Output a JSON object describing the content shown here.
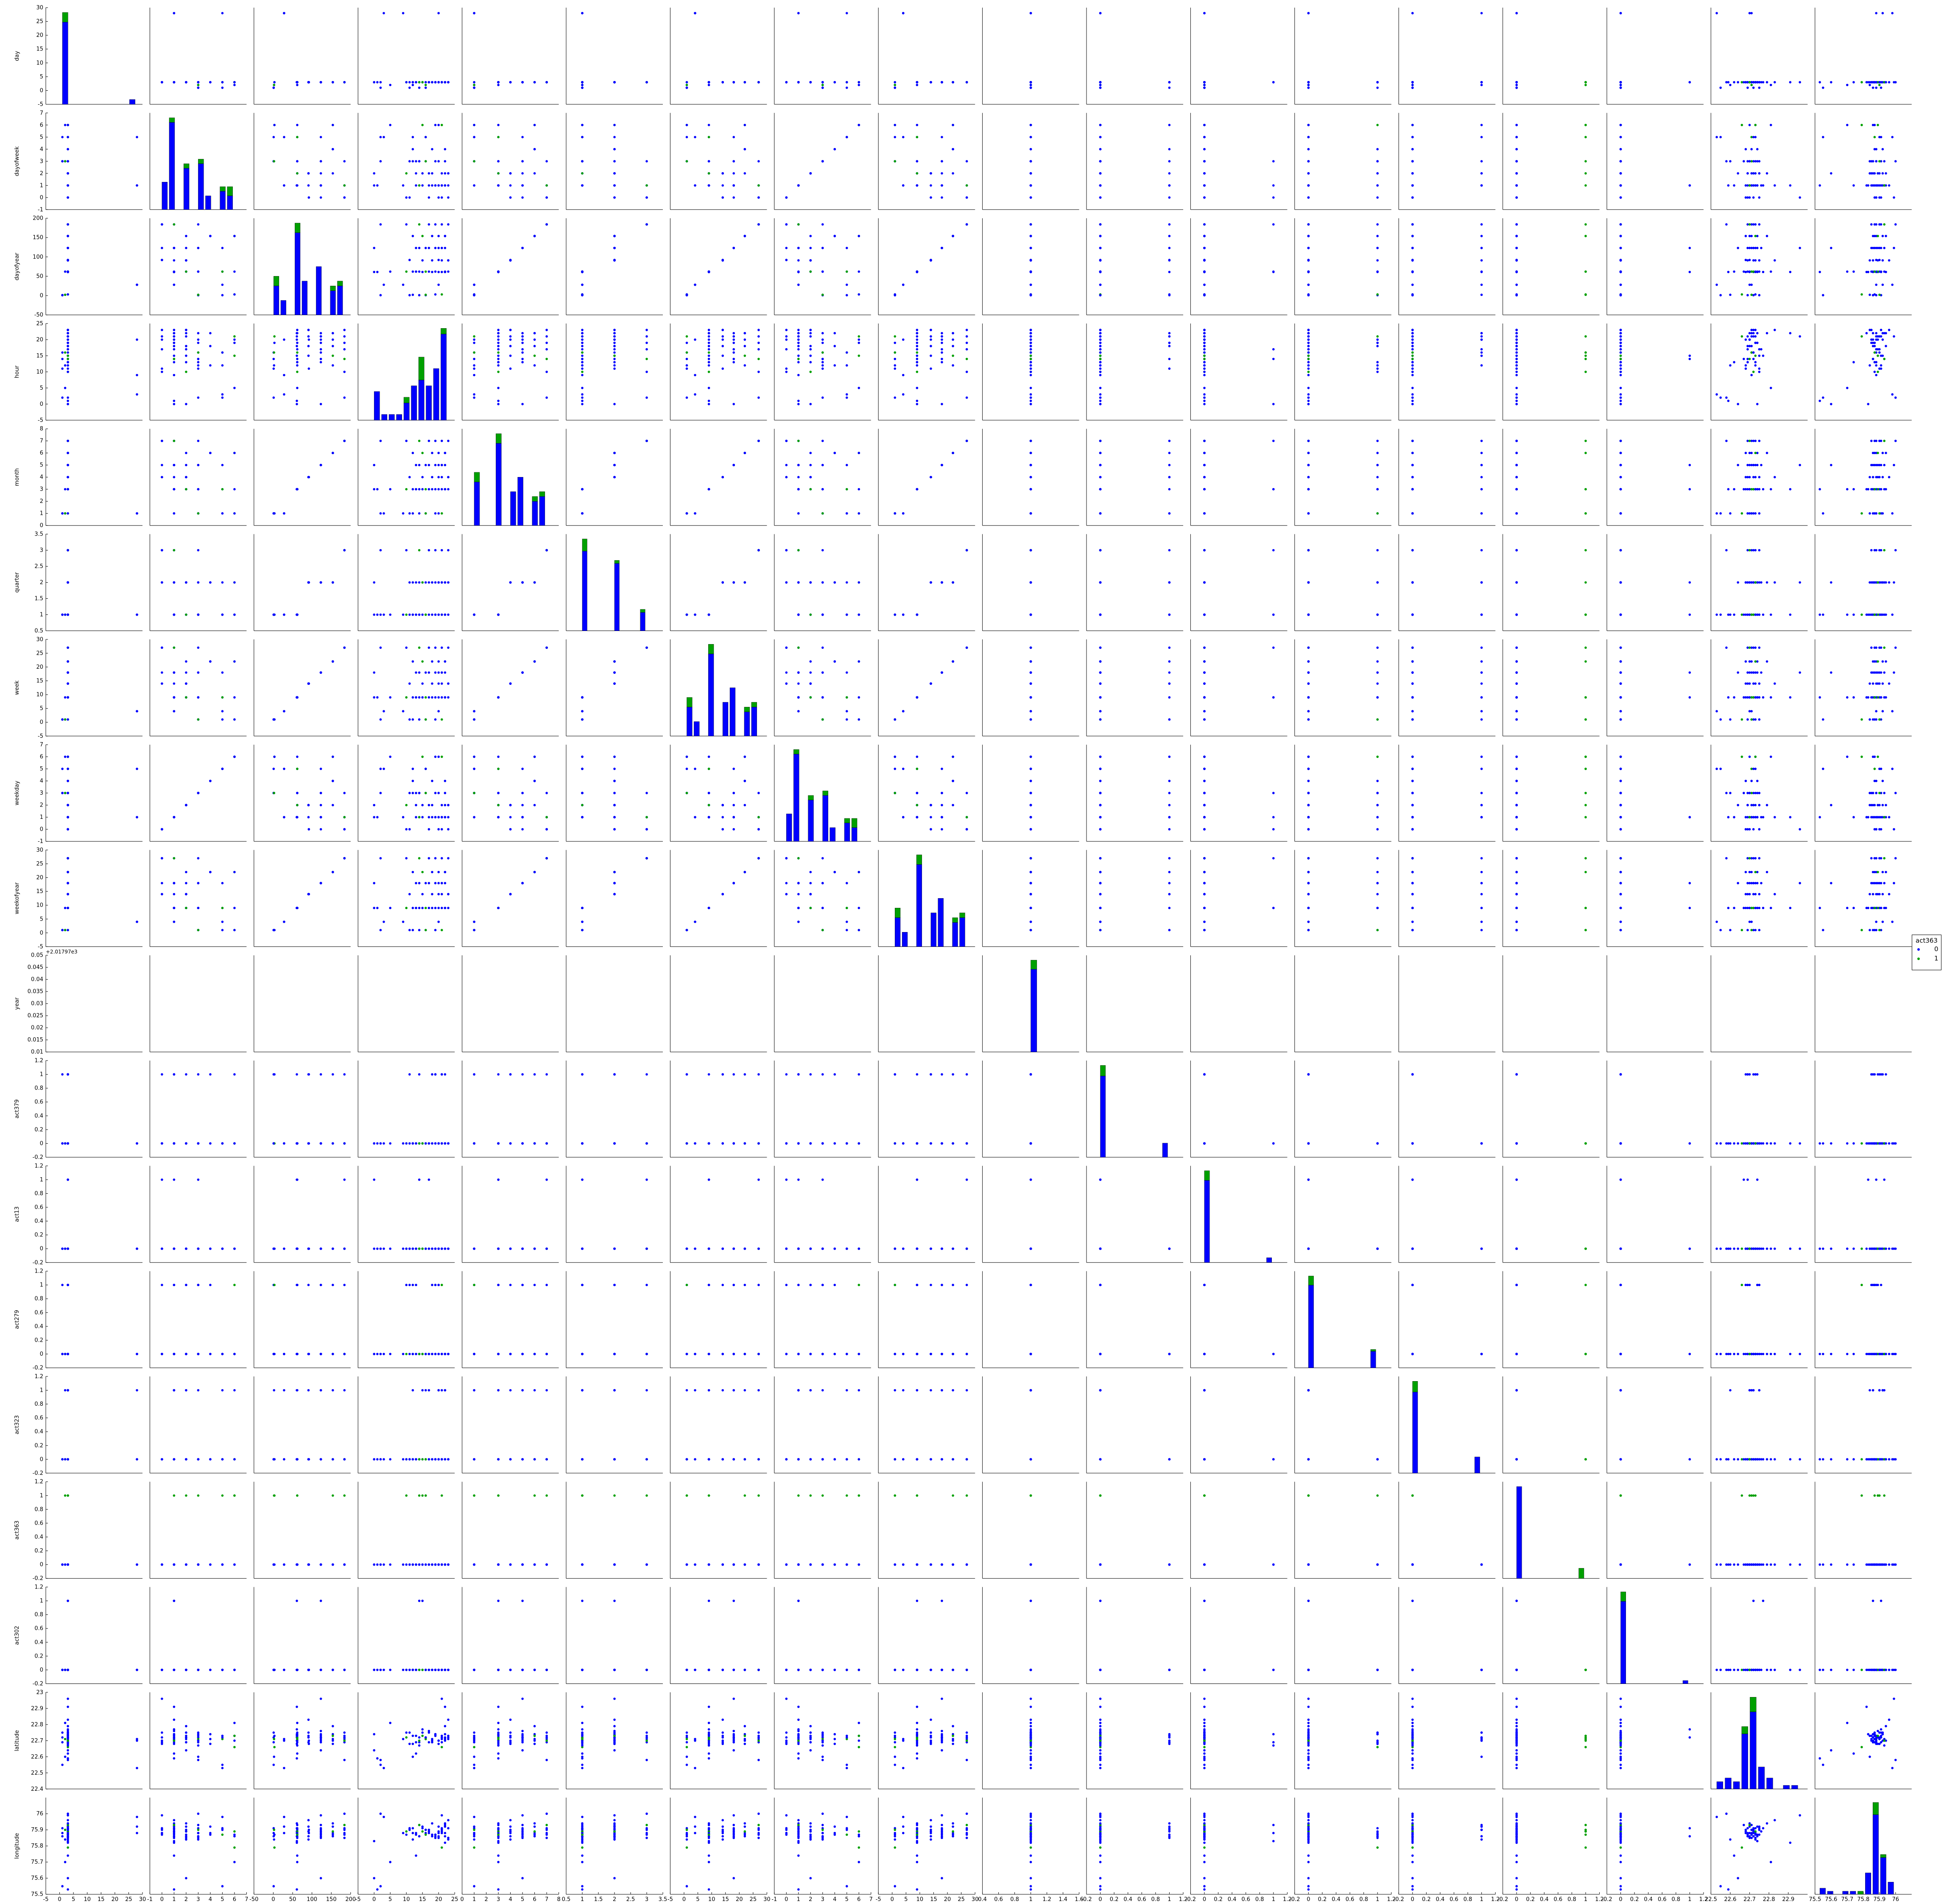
{
  "chart_data": {
    "type": "scatter",
    "title": "",
    "variables": [
      {
        "name": "day",
        "ticks": [
          -5,
          0,
          5,
          10,
          15,
          20,
          25,
          30
        ],
        "lim": [
          -5,
          30
        ]
      },
      {
        "name": "dayofweek",
        "ticks": [
          -1,
          0,
          1,
          2,
          3,
          4,
          5,
          6,
          7
        ],
        "lim": [
          -1,
          7
        ]
      },
      {
        "name": "dayofyear",
        "ticks": [
          -50,
          0,
          50,
          100,
          150,
          200
        ],
        "lim": [
          -50,
          200
        ]
      },
      {
        "name": "hour",
        "ticks": [
          -5,
          0,
          5,
          10,
          15,
          20,
          25
        ],
        "lim": [
          -5,
          25
        ]
      },
      {
        "name": "month",
        "ticks": [
          0,
          1,
          2,
          3,
          4,
          5,
          6,
          7,
          8
        ],
        "lim": [
          0,
          8
        ]
      },
      {
        "name": "quarter",
        "ticks": [
          0.5,
          1.0,
          1.5,
          2.0,
          2.5,
          3.0,
          3.5
        ],
        "lim": [
          0.5,
          3.5
        ]
      },
      {
        "name": "week",
        "ticks": [
          -5,
          0,
          5,
          10,
          15,
          20,
          25,
          30
        ],
        "lim": [
          -5,
          30
        ]
      },
      {
        "name": "weekday",
        "ticks": [
          -1,
          0,
          1,
          2,
          3,
          4,
          5,
          6,
          7
        ],
        "lim": [
          -1,
          7
        ]
      },
      {
        "name": "weekofyear",
        "ticks": [
          -5,
          0,
          5,
          10,
          15,
          20,
          25,
          30
        ],
        "lim": [
          -5,
          30
        ]
      },
      {
        "name": "year",
        "ticks": [
          0.01,
          0.015,
          0.02,
          0.025,
          0.03,
          0.035,
          0.04,
          0.045,
          0.05
        ],
        "lim": [
          0.01,
          0.05
        ],
        "xticks": [
          0.4,
          0.6,
          0.8,
          1.0,
          1.2,
          1.4,
          1.6
        ],
        "xlim": [
          0.4,
          1.6
        ],
        "offset": "+2.01797e3",
        "xoffset": "+2.017e3"
      },
      {
        "name": "act379",
        "ticks": [
          -0.2,
          0.0,
          0.2,
          0.4,
          0.6,
          0.8,
          1.0,
          1.2
        ],
        "lim": [
          -0.2,
          1.2
        ]
      },
      {
        "name": "act13",
        "ticks": [
          -0.2,
          0.0,
          0.2,
          0.4,
          0.6,
          0.8,
          1.0,
          1.2
        ],
        "lim": [
          -0.2,
          1.2
        ]
      },
      {
        "name": "act279",
        "ticks": [
          -0.2,
          0.0,
          0.2,
          0.4,
          0.6,
          0.8,
          1.0,
          1.2
        ],
        "lim": [
          -0.2,
          1.2
        ]
      },
      {
        "name": "act323",
        "ticks": [
          -0.2,
          0.0,
          0.2,
          0.4,
          0.6,
          0.8,
          1.0,
          1.2
        ],
        "lim": [
          -0.2,
          1.2
        ]
      },
      {
        "name": "act363",
        "ticks": [
          -0.2,
          0.0,
          0.2,
          0.4,
          0.6,
          0.8,
          1.0,
          1.2
        ],
        "lim": [
          -0.2,
          1.2
        ]
      },
      {
        "name": "act302",
        "ticks": [
          -0.2,
          0.0,
          0.2,
          0.4,
          0.6,
          0.8,
          1.0,
          1.2
        ],
        "lim": [
          -0.2,
          1.2
        ]
      },
      {
        "name": "latitude",
        "ticks": [
          22.4,
          22.5,
          22.6,
          22.7,
          22.8,
          22.9,
          23.0
        ],
        "lim": [
          22.4,
          23.0
        ],
        "xticks": [
          22.5,
          22.6,
          22.7,
          22.8,
          22.9
        ],
        "xlim": [
          22.5,
          23.0
        ]
      },
      {
        "name": "longitude",
        "ticks": [
          75.5,
          75.6,
          75.7,
          75.8,
          75.9,
          76.0
        ],
        "lim": [
          75.5,
          76.1
        ],
        "xticks": [
          75.5,
          75.6,
          75.7,
          75.8,
          75.9,
          76.0
        ],
        "xlim": [
          75.5,
          76.1
        ]
      }
    ],
    "records": [
      [
        1,
        3,
        1,
        16,
        1,
        1,
        1,
        3,
        1,
        1,
        0,
        0,
        0,
        0,
        0,
        0,
        22.72,
        75.88
      ],
      [
        1,
        3,
        1,
        14,
        1,
        1,
        1,
        3,
        1,
        1,
        1,
        0,
        0,
        0,
        0,
        0,
        22.69,
        75.86
      ],
      [
        1,
        3,
        1,
        11,
        1,
        1,
        1,
        3,
        1,
        1,
        0,
        0,
        1,
        0,
        0,
        0,
        22.75,
        75.91
      ],
      [
        2,
        3,
        2,
        12,
        1,
        1,
        1,
        3,
        1,
        1,
        0,
        0,
        0,
        1,
        0,
        0,
        22.6,
        75.84
      ],
      [
        2,
        3,
        2,
        16,
        1,
        1,
        1,
        3,
        1,
        1,
        0,
        0,
        0,
        0,
        1,
        0,
        22.71,
        75.9
      ],
      [
        3,
        6,
        3,
        21,
        1,
        1,
        1,
        6,
        1,
        1,
        0,
        0,
        1,
        0,
        1,
        0,
        22.66,
        75.79
      ],
      [
        3,
        6,
        3,
        19,
        1,
        1,
        1,
        6,
        1,
        1,
        1,
        0,
        0,
        0,
        0,
        0,
        22.73,
        75.87
      ],
      [
        28,
        1,
        28,
        20,
        1,
        1,
        4,
        1,
        4,
        1,
        0,
        0,
        0,
        1,
        0,
        0,
        22.7,
        75.92
      ],
      [
        28,
        1,
        28,
        9,
        1,
        1,
        4,
        1,
        4,
        1,
        0,
        0,
        0,
        0,
        0,
        0,
        22.71,
        75.88
      ],
      [
        3,
        1,
        61,
        0,
        3,
        1,
        9,
        1,
        9,
        1,
        0,
        1,
        0,
        0,
        0,
        0,
        22.74,
        75.83
      ],
      [
        3,
        1,
        61,
        20,
        3,
        1,
        9,
        1,
        9,
        1,
        0,
        0,
        1,
        0,
        0,
        0,
        22.68,
        75.89
      ],
      [
        3,
        1,
        61,
        22,
        3,
        1,
        9,
        1,
        9,
        1,
        0,
        0,
        0,
        1,
        0,
        0,
        22.72,
        75.86
      ],
      [
        3,
        1,
        61,
        15,
        3,
        1,
        9,
        1,
        9,
        1,
        0,
        0,
        0,
        0,
        0,
        1,
        22.77,
        75.91
      ],
      [
        3,
        1,
        61,
        18,
        3,
        1,
        9,
        1,
        9,
        1,
        1,
        0,
        0,
        0,
        0,
        0,
        22.7,
        75.94
      ],
      [
        3,
        1,
        61,
        21,
        3,
        1,
        9,
        1,
        9,
        1,
        0,
        0,
        0,
        0,
        0,
        0,
        22.73,
        75.88
      ],
      [
        3,
        2,
        62,
        13,
        3,
        1,
        9,
        2,
        9,
        1,
        0,
        0,
        1,
        0,
        0,
        0,
        22.69,
        75.87
      ],
      [
        3,
        2,
        62,
        17,
        3,
        1,
        9,
        2,
        9,
        1,
        0,
        0,
        0,
        1,
        0,
        0,
        22.75,
        75.9
      ],
      [
        3,
        2,
        62,
        23,
        3,
        1,
        9,
        2,
        9,
        1,
        0,
        0,
        0,
        0,
        0,
        0,
        22.71,
        75.85
      ],
      [
        3,
        2,
        62,
        10,
        3,
        1,
        9,
        2,
        9,
        1,
        0,
        0,
        0,
        0,
        1,
        0,
        22.72,
        75.89
      ],
      [
        3,
        3,
        62,
        14,
        3,
        1,
        9,
        3,
        9,
        1,
        0,
        1,
        0,
        0,
        0,
        0,
        22.67,
        75.93
      ],
      [
        3,
        3,
        62,
        19,
        3,
        1,
        9,
        3,
        9,
        1,
        0,
        0,
        1,
        0,
        0,
        0,
        22.74,
        75.86
      ],
      [
        3,
        3,
        62,
        22,
        3,
        1,
        9,
        3,
        9,
        1,
        0,
        0,
        0,
        0,
        0,
        0,
        22.7,
        75.88
      ],
      [
        3,
        5,
        62,
        12,
        3,
        1,
        9,
        5,
        9,
        1,
        0,
        0,
        0,
        0,
        0,
        0,
        22.73,
        75.91
      ],
      [
        3,
        5,
        62,
        16,
        3,
        1,
        9,
        5,
        9,
        1,
        0,
        0,
        0,
        0,
        1,
        0,
        22.71,
        75.87
      ],
      [
        3,
        2,
        91,
        21,
        4,
        2,
        14,
        2,
        14,
        1,
        1,
        0,
        0,
        0,
        0,
        0,
        22.72,
        75.89
      ],
      [
        3,
        2,
        91,
        18,
        4,
        2,
        14,
        2,
        14,
        1,
        0,
        0,
        1,
        0,
        0,
        0,
        22.69,
        75.86
      ],
      [
        3,
        2,
        91,
        15,
        4,
        2,
        14,
        2,
        14,
        1,
        0,
        0,
        0,
        1,
        0,
        0,
        22.75,
        75.92
      ],
      [
        3,
        2,
        91,
        23,
        4,
        2,
        14,
        2,
        14,
        1,
        0,
        0,
        0,
        0,
        0,
        0,
        22.73,
        75.84
      ],
      [
        3,
        0,
        92,
        20,
        4,
        2,
        14,
        0,
        14,
        1,
        0,
        0,
        0,
        0,
        0,
        0,
        22.7,
        75.88
      ],
      [
        3,
        0,
        92,
        11,
        4,
        2,
        14,
        0,
        14,
        1,
        1,
        0,
        0,
        0,
        0,
        0,
        22.68,
        75.9
      ],
      [
        3,
        1,
        123,
        19,
        5,
        2,
        18,
        1,
        18,
        1,
        0,
        0,
        1,
        0,
        0,
        0,
        22.74,
        75.87
      ],
      [
        3,
        1,
        123,
        22,
        5,
        2,
        18,
        1,
        18,
        1,
        0,
        0,
        0,
        1,
        0,
        0,
        22.71,
        75.93
      ],
      [
        3,
        1,
        123,
        14,
        5,
        2,
        18,
        1,
        18,
        1,
        0,
        0,
        0,
        0,
        0,
        1,
        22.72,
        75.86
      ],
      [
        3,
        1,
        123,
        17,
        5,
        2,
        18,
        1,
        18,
        1,
        0,
        0,
        0,
        0,
        0,
        0,
        22.76,
        75.89
      ],
      [
        3,
        1,
        123,
        21,
        5,
        2,
        18,
        1,
        18,
        1,
        1,
        0,
        0,
        0,
        0,
        0,
        22.69,
        75.91
      ],
      [
        3,
        3,
        123,
        13,
        5,
        2,
        18,
        3,
        18,
        1,
        0,
        0,
        0,
        0,
        0,
        0,
        22.73,
        75.88
      ],
      [
        3,
        3,
        123,
        20,
        5,
        2,
        18,
        3,
        18,
        1,
        0,
        0,
        1,
        0,
        0,
        0,
        22.7,
        75.85
      ],
      [
        3,
        5,
        123,
        16,
        5,
        2,
        18,
        5,
        18,
        1,
        0,
        0,
        0,
        1,
        0,
        0,
        22.72,
        75.9
      ],
      [
        3,
        4,
        154,
        18,
        6,
        2,
        22,
        4,
        22,
        1,
        0,
        0,
        0,
        0,
        0,
        0,
        22.71,
        75.87
      ],
      [
        3,
        4,
        154,
        22,
        6,
        2,
        22,
        4,
        22,
        1,
        1,
        0,
        0,
        0,
        0,
        0,
        22.74,
        75.92
      ],
      [
        3,
        4,
        154,
        12,
        6,
        2,
        22,
        4,
        22,
        1,
        0,
        0,
        1,
        0,
        0,
        0,
        22.68,
        75.88
      ],
      [
        3,
        6,
        154,
        15,
        6,
        2,
        22,
        6,
        22,
        1,
        0,
        0,
        0,
        0,
        1,
        0,
        22.73,
        75.89
      ],
      [
        3,
        6,
        154,
        20,
        6,
        2,
        22,
        6,
        22,
        1,
        0,
        0,
        0,
        1,
        0,
        0,
        22.7,
        75.86
      ],
      [
        3,
        0,
        184,
        23,
        7,
        3,
        27,
        0,
        27,
        1,
        0,
        0,
        0,
        0,
        0,
        0,
        22.72,
        75.91
      ],
      [
        3,
        0,
        184,
        17,
        7,
        3,
        27,
        0,
        27,
        1,
        0,
        1,
        0,
        0,
        0,
        0,
        22.69,
        75.88
      ],
      [
        3,
        0,
        184,
        10,
        7,
        3,
        27,
        0,
        27,
        1,
        0,
        0,
        1,
        0,
        0,
        0,
        22.75,
        75.87
      ],
      [
        3,
        1,
        184,
        21,
        7,
        3,
        27,
        1,
        27,
        1,
        0,
        0,
        0,
        1,
        0,
        0,
        22.71,
        75.9
      ],
      [
        3,
        1,
        184,
        19,
        7,
        3,
        27,
        1,
        27,
        1,
        1,
        0,
        0,
        0,
        0,
        0,
        22.73,
        75.85
      ],
      [
        3,
        1,
        184,
        14,
        7,
        3,
        27,
        1,
        27,
        1,
        0,
        0,
        0,
        0,
        1,
        0,
        22.7,
        75.93
      ],
      [
        1,
        5,
        1,
        2,
        1,
        1,
        1,
        5,
        1,
        1,
        0,
        0,
        0,
        0,
        0,
        0,
        22.55,
        75.55
      ],
      [
        3,
        1,
        61,
        1,
        3,
        1,
        9,
        1,
        9,
        1,
        0,
        0,
        0,
        0,
        0,
        0,
        22.59,
        75.53
      ],
      [
        3,
        2,
        123,
        0,
        5,
        2,
        18,
        2,
        18,
        1,
        0,
        0,
        0,
        0,
        0,
        0,
        22.64,
        75.6
      ],
      [
        28,
        5,
        28,
        3,
        1,
        1,
        4,
        5,
        4,
        1,
        0,
        0,
        0,
        0,
        0,
        0,
        22.53,
        75.98
      ],
      [
        3,
        3,
        184,
        2,
        7,
        3,
        27,
        3,
        27,
        1,
        0,
        0,
        0,
        0,
        0,
        0,
        22.58,
        76.0
      ],
      [
        2,
        6,
        62,
        5,
        3,
        1,
        9,
        6,
        9,
        1,
        0,
        0,
        0,
        0,
        0,
        0,
        22.81,
        75.7
      ],
      [
        3,
        2,
        154,
        22,
        6,
        2,
        22,
        2,
        22,
        1,
        0,
        0,
        0,
        0,
        0,
        0,
        22.79,
        75.94
      ],
      [
        3,
        1,
        91,
        23,
        4,
        2,
        14,
        1,
        14,
        1,
        0,
        0,
        0,
        0,
        0,
        0,
        22.83,
        75.96
      ],
      [
        3,
        1,
        61,
        22,
        3,
        1,
        9,
        1,
        9,
        1,
        0,
        0,
        0,
        0,
        0,
        0,
        22.91,
        75.82
      ],
      [
        3,
        0,
        123,
        21,
        5,
        2,
        18,
        0,
        18,
        1,
        0,
        0,
        0,
        0,
        0,
        0,
        22.96,
        75.99
      ],
      [
        3,
        1,
        62,
        13,
        3,
        1,
        9,
        1,
        9,
        1,
        0,
        0,
        0,
        0,
        0,
        0,
        22.62,
        75.74
      ]
    ],
    "hue": {
      "name": "act363",
      "levels": [
        "0",
        "1"
      ],
      "colors": [
        "#0000ff",
        "#00a000"
      ]
    }
  },
  "legend": {
    "title": "act363",
    "labels": [
      "0",
      "1"
    ]
  }
}
